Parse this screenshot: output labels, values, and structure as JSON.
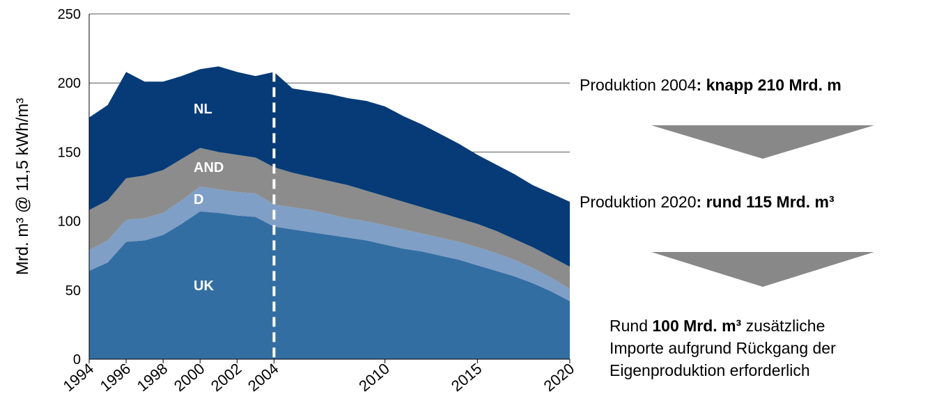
{
  "chart_data": {
    "type": "stacked_area",
    "y_label": "Mrd. m³ @ 11,5 kWh/m³",
    "x": [
      1994,
      1995,
      1996,
      1997,
      1998,
      1999,
      2000,
      2001,
      2002,
      2003,
      2004,
      2005,
      2006,
      2007,
      2008,
      2009,
      2010,
      2011,
      2012,
      2013,
      2014,
      2015,
      2016,
      2017,
      2018,
      2019,
      2020
    ],
    "series": [
      {
        "name": "UK",
        "color": "#336ea3",
        "values": [
          64,
          70,
          85,
          86,
          90,
          98,
          107,
          106,
          104,
          103,
          96,
          94,
          92,
          90,
          88,
          86,
          83,
          80,
          78,
          75,
          72,
          68,
          64,
          60,
          55,
          49,
          42
        ]
      },
      {
        "name": "D",
        "color": "#7f9fc6",
        "values": [
          15,
          16,
          16,
          16,
          16,
          17,
          18,
          17,
          17,
          17,
          16,
          16,
          16,
          15,
          14,
          14,
          14,
          14,
          13,
          13,
          13,
          13,
          13,
          12,
          11,
          10,
          9
        ]
      },
      {
        "name": "AND",
        "color": "#8c8c8c",
        "values": [
          29,
          29,
          30,
          31,
          31,
          30,
          28,
          27,
          27,
          26,
          27,
          25,
          24,
          24,
          24,
          22,
          21,
          20,
          19,
          18,
          17,
          17,
          16,
          15,
          15,
          15,
          16
        ]
      },
      {
        "name": "NL",
        "color": "#063b77",
        "values": [
          67,
          69,
          77,
          68,
          64,
          60,
          57,
          62,
          60,
          59,
          69,
          61,
          62,
          63,
          63,
          65,
          65,
          62,
          60,
          57,
          54,
          50,
          48,
          47,
          45,
          46,
          47
        ]
      }
    ],
    "xlim": [
      1994,
      2020
    ],
    "xticks": [
      1994,
      1996,
      1998,
      2000,
      2002,
      2004,
      2010,
      2015,
      2020
    ],
    "ylim": [
      0,
      250
    ],
    "yticks": [
      0,
      50,
      100,
      150,
      200,
      250
    ],
    "grid": true,
    "vline": 2004,
    "annotations": [
      [
        [
          {
            "text": "Produktion 2004",
            "bold": false
          },
          {
            "text": ": knapp 210 Mrd. m",
            "bold": true
          }
        ]
      ],
      [
        [
          {
            "text": "Produktion 2020",
            "bold": false
          },
          {
            "text": ": rund 115 Mrd. m³",
            "bold": true
          }
        ]
      ],
      [
        [
          {
            "text": "Rund ",
            "bold": false
          },
          {
            "text": "100 Mrd. m³",
            "bold": true
          },
          {
            "text": " zusätzliche",
            "bold": false
          }
        ],
        [
          {
            "text": "Importe aufgrund Rückgang der",
            "bold": false
          }
        ],
        [
          {
            "text": "Eigenproduktion erforderlich",
            "bold": false
          }
        ]
      ]
    ]
  }
}
